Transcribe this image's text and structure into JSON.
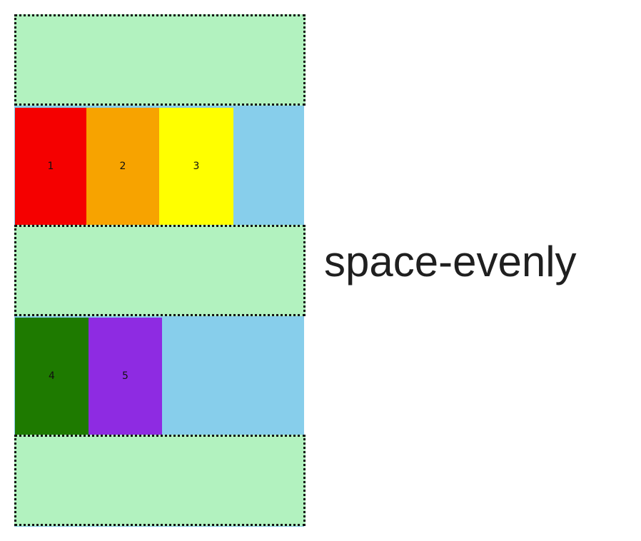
{
  "caption": "space-evenly",
  "colors": {
    "container": "#87ceeb",
    "spacing": "#b2f2bf",
    "spacing_border": "#111111"
  },
  "rows": [
    {
      "items": [
        {
          "label": "1",
          "color": "#f50000"
        },
        {
          "label": "2",
          "color": "#f7a300"
        },
        {
          "label": "3",
          "color": "#ffff00"
        }
      ]
    },
    {
      "items": [
        {
          "label": "4",
          "color": "#1e7a00"
        },
        {
          "label": "5",
          "color": "#8e2be2"
        }
      ]
    }
  ]
}
